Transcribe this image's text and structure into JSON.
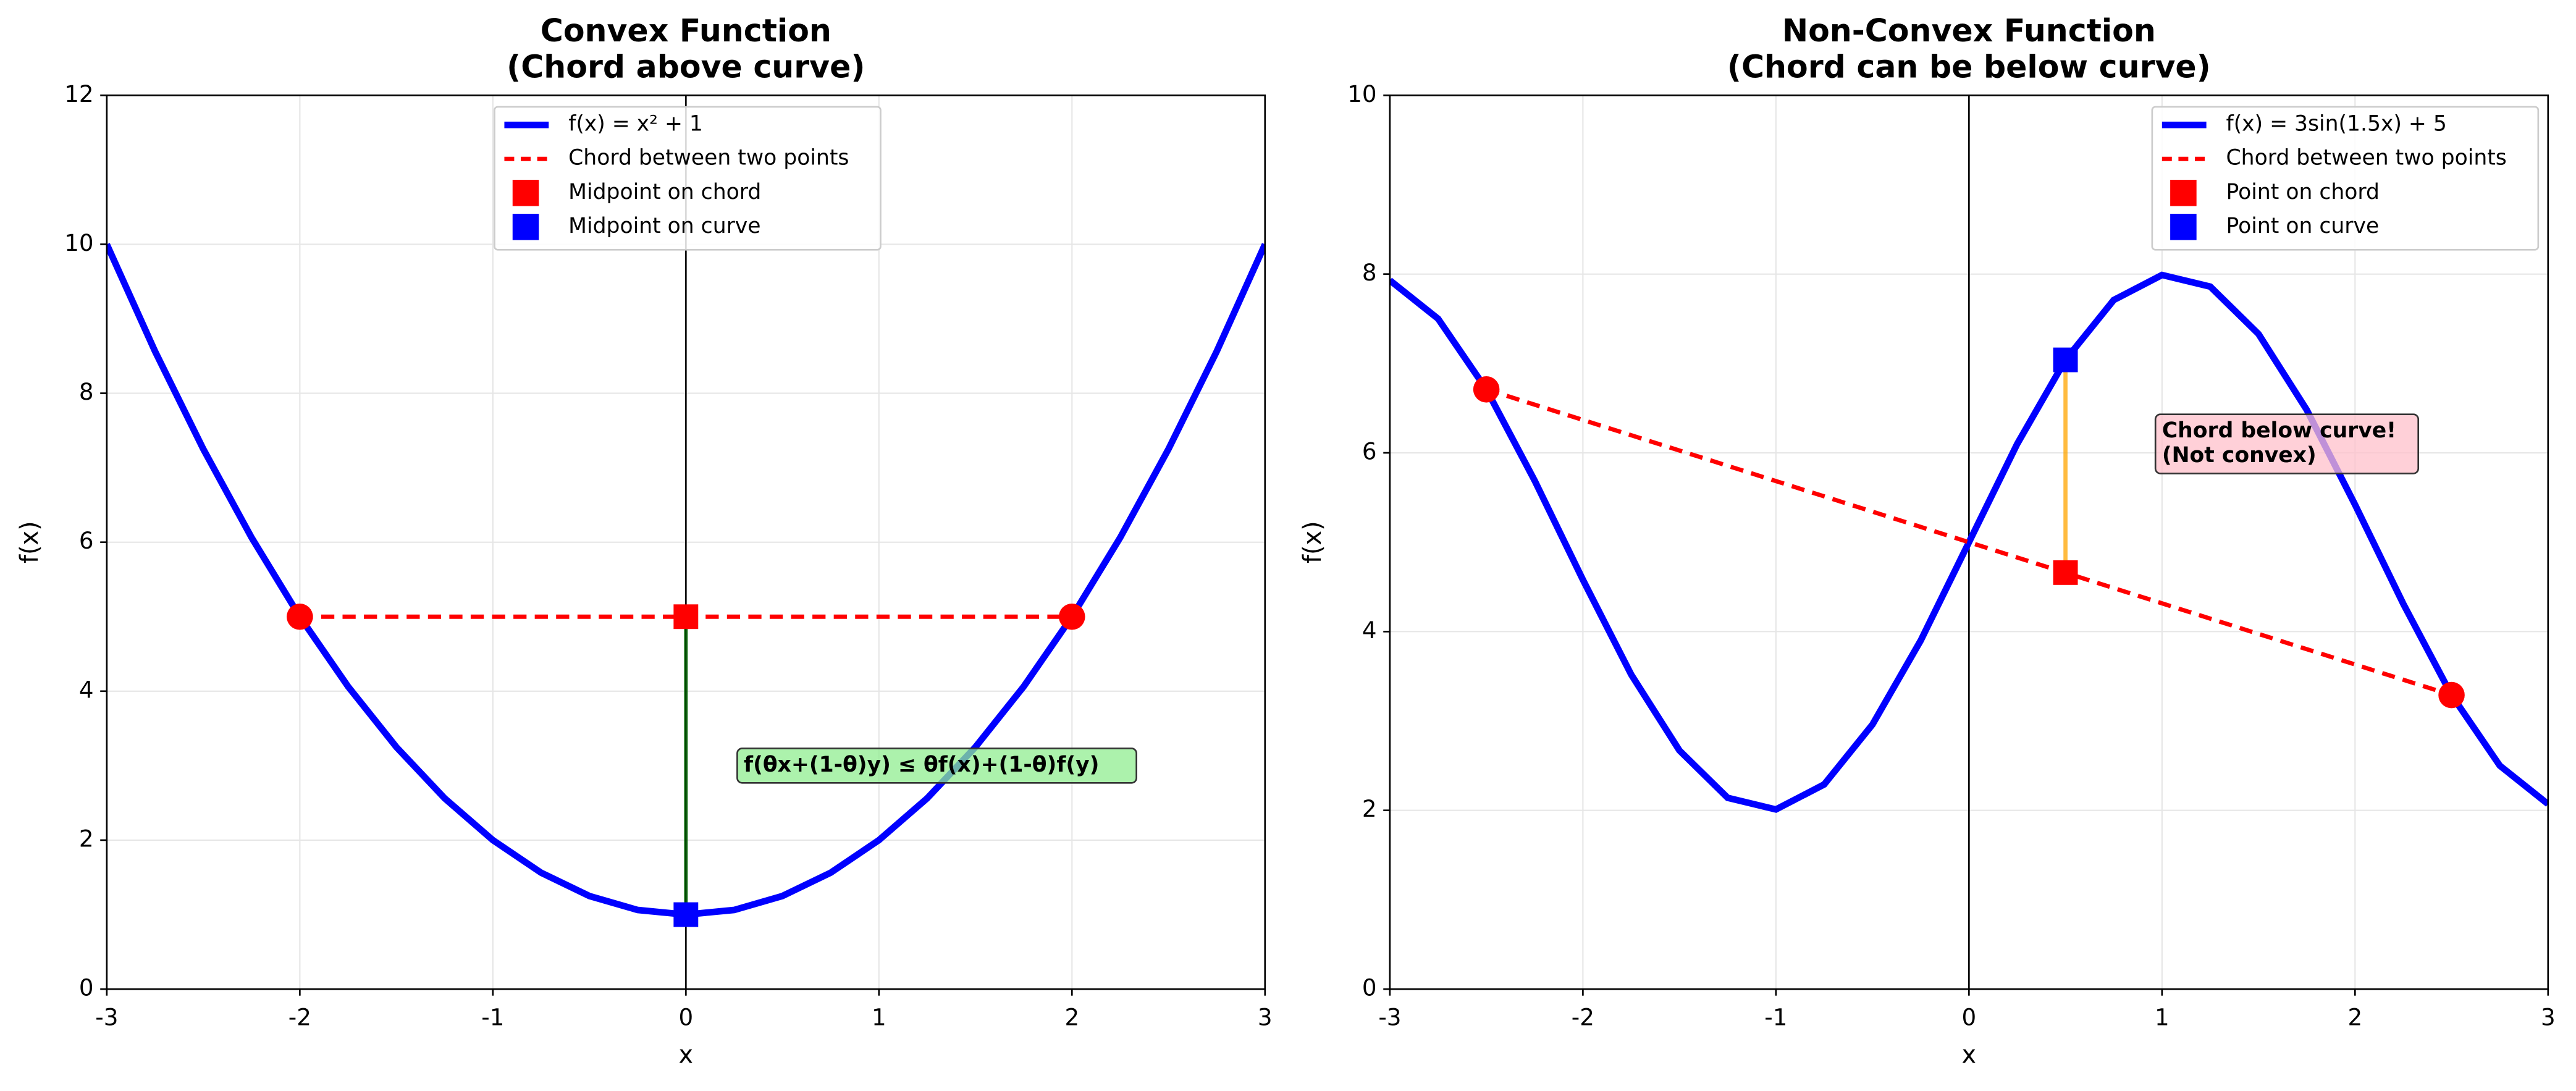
{
  "chart_data": [
    {
      "type": "line",
      "title": [
        "Convex Function",
        "(Chord above curve)"
      ],
      "x_label": "x",
      "y_label": "f(x)",
      "xlim": [
        -3,
        3
      ],
      "xticks": [
        -3,
        -2,
        -1,
        0,
        1,
        2,
        3
      ],
      "ylim": [
        0,
        12
      ],
      "yticks": [
        0,
        2,
        4,
        6,
        8,
        10,
        12
      ],
      "grid": true,
      "legend": "upper center",
      "series": [
        {
          "name": "f(x) = x² + 1",
          "color": "#0000ff",
          "style": "solid",
          "x": [
            -3,
            -2.75,
            -2.5,
            -2.25,
            -2,
            -1.75,
            -1.5,
            -1.25,
            -1,
            -0.75,
            -0.5,
            -0.25,
            0,
            0.25,
            0.5,
            0.75,
            1,
            1.25,
            1.5,
            1.75,
            2,
            2.25,
            2.5,
            2.75,
            3
          ],
          "values": [
            10,
            8.5625,
            7.25,
            6.0625,
            5,
            4.0625,
            3.25,
            2.5625,
            2,
            1.5625,
            1.25,
            1.0625,
            1,
            1.0625,
            1.25,
            1.5625,
            2,
            2.5625,
            3.25,
            4.0625,
            5,
            6.0625,
            7.25,
            8.5625,
            10
          ]
        },
        {
          "name": "Chord between two points",
          "color": "#ff0000",
          "style": "dashed",
          "marker": "circle",
          "x": [
            -2,
            2
          ],
          "values": [
            5,
            5
          ]
        },
        {
          "name": "Midpoint on chord",
          "color": "#ff0000",
          "style": "square",
          "x": [
            0
          ],
          "values": [
            5
          ]
        },
        {
          "name": "Midpoint on curve",
          "color": "#0000ff",
          "style": "square",
          "x": [
            0
          ],
          "values": [
            1
          ]
        }
      ],
      "connector_color": "#006400",
      "annotation": {
        "lines": [
          "f(θx+(1-θ)y) ≤ θf(x)+(1-θ)f(y)"
        ],
        "color": "#006400",
        "background": "#90ee90"
      }
    },
    {
      "type": "line",
      "title": [
        "Non-Convex Function",
        "(Chord can be below curve)"
      ],
      "x_label": "x",
      "y_label": "f(x)",
      "xlim": [
        -3,
        3
      ],
      "xticks": [
        -3,
        -2,
        -1,
        0,
        1,
        2,
        3
      ],
      "ylim": [
        0,
        10
      ],
      "yticks": [
        0,
        2,
        4,
        6,
        8,
        10
      ],
      "grid": true,
      "legend": "upper right",
      "series": [
        {
          "name": "f(x) = 3sin(1.5x) + 5",
          "color": "#0000ff",
          "style": "solid",
          "x": [
            -3,
            -2.75,
            -2.5,
            -2.25,
            -2,
            -1.75,
            -1.5,
            -1.25,
            -1,
            -0.75,
            -0.5,
            -0.25,
            0,
            0.25,
            0.5,
            0.75,
            1,
            1.25,
            1.5,
            1.75,
            2,
            2.25,
            2.5,
            2.75,
            3
          ],
          "values": [
            7.93,
            7.5,
            6.71,
            5.69,
            4.58,
            3.52,
            2.67,
            2.14,
            2.01,
            2.29,
            2.96,
            3.9,
            5,
            6.1,
            7.04,
            7.71,
            7.99,
            7.86,
            7.33,
            6.48,
            5.42,
            4.31,
            3.29,
            2.5,
            2.07
          ]
        },
        {
          "name": "Chord between two points",
          "color": "#ff0000",
          "style": "dashed",
          "marker": "circle",
          "x": [
            -2.5,
            2.5
          ],
          "values": [
            6.71,
            3.29
          ]
        },
        {
          "name": "Point on chord",
          "color": "#ff0000",
          "style": "square",
          "x": [
            0.5
          ],
          "values": [
            4.66
          ]
        },
        {
          "name": "Point on curve",
          "color": "#0000ff",
          "style": "square",
          "x": [
            0.5
          ],
          "values": [
            7.04
          ]
        }
      ],
      "connector_color": "#ffa500",
      "annotation": {
        "lines": [
          "Chord below curve!",
          "(Not convex)"
        ],
        "color": "#ff0000",
        "background": "#ffc0cb"
      }
    }
  ]
}
